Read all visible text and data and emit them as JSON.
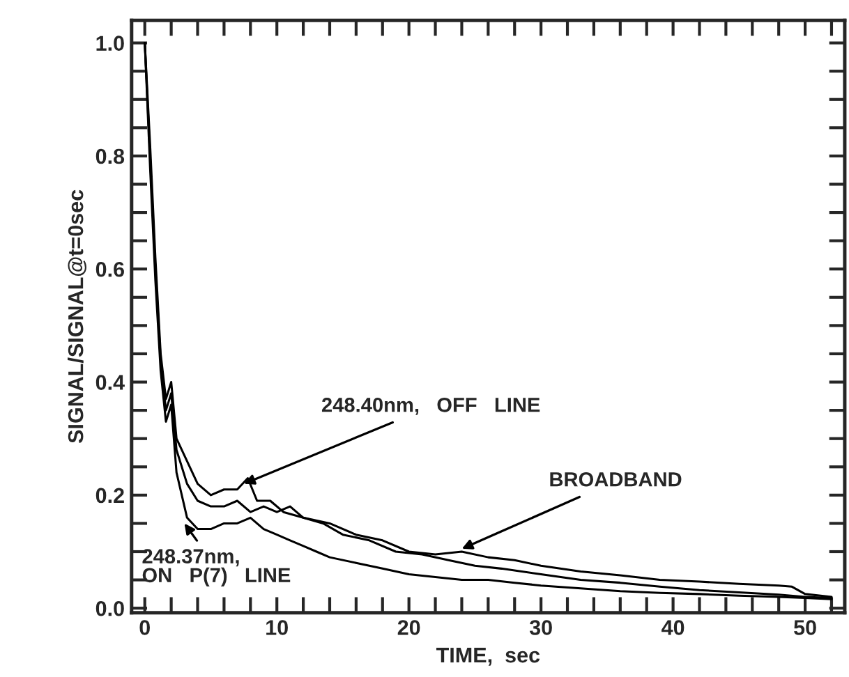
{
  "chart_data": {
    "type": "line",
    "xlabel": "TIME,  sec",
    "ylabel": "SIGNAL/SIGNAL@t=0sec",
    "xlim": [
      -1,
      53
    ],
    "ylim": [
      -0.008,
      1.04
    ],
    "xticks": [
      0,
      {
        "value": 2,
        "label": null
      },
      {
        "value": 4,
        "label": null
      },
      {
        "value": 6,
        "label": null
      },
      {
        "value": 8,
        "label": null
      },
      10,
      {
        "value": 12,
        "label": null
      },
      {
        "value": 14,
        "label": null
      },
      {
        "value": 16,
        "label": null
      },
      {
        "value": 18,
        "label": null
      },
      20,
      {
        "value": 22,
        "label": null
      },
      {
        "value": 24,
        "label": null
      },
      {
        "value": 26,
        "label": null
      },
      {
        "value": 28,
        "label": null
      },
      30,
      {
        "value": 32,
        "label": null
      },
      {
        "value": 34,
        "label": null
      },
      {
        "value": 36,
        "label": null
      },
      {
        "value": 38,
        "label": null
      },
      40,
      {
        "value": 42,
        "label": null
      },
      {
        "value": 44,
        "label": null
      },
      {
        "value": 46,
        "label": null
      },
      {
        "value": 48,
        "label": null
      },
      50,
      {
        "value": 52,
        "label": null
      }
    ],
    "yticks": [
      {
        "value": 0,
        "label": "0.0"
      },
      {
        "value": 0.05,
        "label": null
      },
      {
        "value": 0.1,
        "label": null
      },
      {
        "value": 0.15,
        "label": null
      },
      0.2,
      {
        "value": 0.25,
        "label": null
      },
      {
        "value": 0.3,
        "label": null
      },
      {
        "value": 0.35,
        "label": null
      },
      0.4,
      {
        "value": 0.45,
        "label": null
      },
      {
        "value": 0.5,
        "label": null
      },
      {
        "value": 0.55,
        "label": null
      },
      0.6,
      {
        "value": 0.65,
        "label": null
      },
      {
        "value": 0.7,
        "label": null
      },
      {
        "value": 0.75,
        "label": null
      },
      0.8,
      {
        "value": 0.85,
        "label": null
      },
      {
        "value": 0.9,
        "label": null
      },
      {
        "value": 0.95,
        "label": null
      },
      {
        "value": 1.0,
        "label": "1.0"
      }
    ],
    "grid": false,
    "marker": "none",
    "line_style": "solid",
    "series": [
      {
        "color": "#000000",
        "x": [
          0,
          0.4,
          0.8,
          1.2,
          1.6,
          2.0,
          2.4,
          2.8,
          3.2,
          4,
          5,
          6,
          7,
          7.8,
          8.5,
          9.5,
          10.5,
          12,
          13.5,
          15,
          17,
          19,
          21,
          23,
          25,
          27,
          30,
          33,
          36,
          39,
          42,
          45,
          48,
          50,
          52
        ],
        "values": [
          1.0,
          0.82,
          0.62,
          0.45,
          0.37,
          0.4,
          0.3,
          0.28,
          0.26,
          0.22,
          0.2,
          0.21,
          0.21,
          0.23,
          0.19,
          0.19,
          0.17,
          0.16,
          0.15,
          0.13,
          0.12,
          0.1,
          0.095,
          0.085,
          0.075,
          0.07,
          0.06,
          0.05,
          0.045,
          0.038,
          0.032,
          0.028,
          0.024,
          0.02,
          0.018
        ]
      },
      {
        "color": "#000000",
        "x": [
          0,
          0.4,
          0.8,
          1.2,
          1.6,
          2.0,
          2.4,
          2.8,
          3.2,
          4,
          5,
          6,
          7,
          8,
          9,
          10,
          11,
          12,
          14,
          16,
          18,
          20,
          22,
          24,
          26,
          28,
          30,
          33,
          36,
          39,
          42,
          45,
          48,
          49,
          50,
          52
        ],
        "values": [
          1.0,
          0.8,
          0.6,
          0.44,
          0.35,
          0.38,
          0.28,
          0.25,
          0.22,
          0.19,
          0.18,
          0.18,
          0.19,
          0.17,
          0.18,
          0.17,
          0.18,
          0.16,
          0.15,
          0.13,
          0.12,
          0.1,
          0.095,
          0.1,
          0.09,
          0.085,
          0.075,
          0.065,
          0.058,
          0.05,
          0.047,
          0.043,
          0.04,
          0.038,
          0.025,
          0.02
        ]
      },
      {
        "color": "#000000",
        "x": [
          0,
          0.4,
          0.8,
          1.2,
          1.6,
          2.0,
          2.4,
          2.8,
          3.2,
          4,
          5,
          6,
          7,
          8,
          9,
          10,
          11,
          12,
          13,
          14,
          16,
          18,
          20,
          22,
          24,
          26,
          28,
          30,
          33,
          36,
          39,
          42,
          45,
          48,
          50,
          52
        ],
        "values": [
          1.0,
          0.78,
          0.58,
          0.42,
          0.33,
          0.36,
          0.24,
          0.2,
          0.16,
          0.14,
          0.14,
          0.15,
          0.15,
          0.16,
          0.14,
          0.13,
          0.12,
          0.11,
          0.1,
          0.09,
          0.08,
          0.07,
          0.06,
          0.055,
          0.05,
          0.05,
          0.045,
          0.04,
          0.035,
          0.03,
          0.027,
          0.025,
          0.022,
          0.02,
          0.018,
          0.016
        ]
      }
    ],
    "annotations": [
      {
        "text": "248.40nm,   OFF   LINE",
        "x": 7.5,
        "y": 0.22
      },
      {
        "text": "248.37nm,\nON   P(7)   LINE",
        "x": 3,
        "y": 0.15
      },
      {
        "text": "BROADBAND",
        "x": 24,
        "y": 0.105
      }
    ]
  }
}
